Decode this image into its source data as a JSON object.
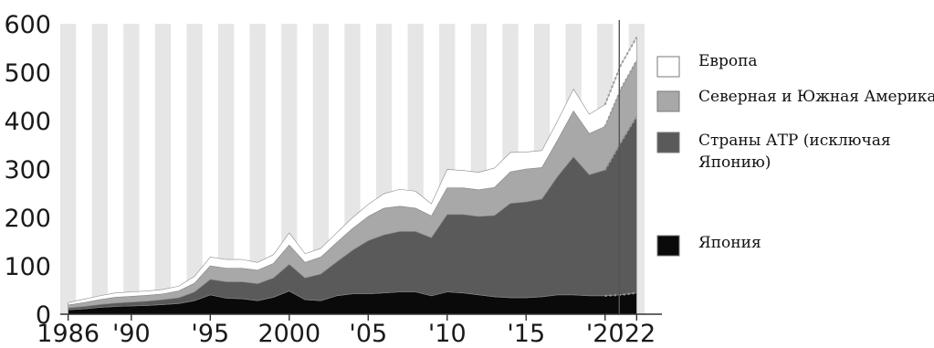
{
  "chart_data": {
    "type": "area",
    "stacked": true,
    "title": "",
    "xlabel": "",
    "ylabel": "",
    "x": [
      1986,
      1987,
      1988,
      1989,
      1990,
      1991,
      1992,
      1993,
      1994,
      1995,
      1996,
      1997,
      1998,
      1999,
      2000,
      2001,
      2002,
      2003,
      2004,
      2005,
      2006,
      2007,
      2008,
      2009,
      2010,
      2011,
      2012,
      2013,
      2014,
      2015,
      2016,
      2017,
      2018,
      2019,
      2020,
      2021,
      2022
    ],
    "xlim": [
      1985.5,
      2023.6
    ],
    "ylim": [
      0,
      600
    ],
    "y_ticks": [
      0,
      100,
      200,
      300,
      400,
      500,
      600
    ],
    "x_ticks": [
      {
        "value": 1986,
        "label": "1986"
      },
      {
        "value": 1990,
        "label": "'90"
      },
      {
        "value": 1995,
        "label": "'95"
      },
      {
        "value": 2000,
        "label": "2000"
      },
      {
        "value": 2005,
        "label": "'05"
      },
      {
        "value": 2010,
        "label": "'10"
      },
      {
        "value": 2015,
        "label": "'15"
      },
      {
        "value": 2020,
        "label": "'20"
      },
      {
        "value": 2022,
        "label": "'22"
      }
    ],
    "forecast_start": 2021,
    "forecast_divider_x": 2020.9,
    "series": [
      {
        "name": "Япония",
        "color": "#0a0a0a",
        "values": [
          9,
          11,
          14,
          16,
          17,
          18,
          20,
          22,
          28,
          40,
          33,
          32,
          28,
          35,
          48,
          30,
          28,
          38,
          42,
          42,
          44,
          46,
          46,
          38,
          46,
          44,
          40,
          36,
          34,
          34,
          36,
          40,
          40,
          38,
          38,
          40,
          44
        ]
      },
      {
        "name": "Страны АТР (исключая Японию)",
        "color": "#5a5a5a",
        "values": [
          4,
          5,
          6,
          7,
          8,
          9,
          10,
          12,
          18,
          32,
          34,
          35,
          35,
          40,
          55,
          45,
          55,
          70,
          90,
          110,
          120,
          125,
          125,
          120,
          160,
          162,
          162,
          168,
          195,
          198,
          202,
          245,
          285,
          250,
          260,
          315,
          365
        ]
      },
      {
        "name": "Северная и Южная Америка",
        "color": "#a8a8a8",
        "values": [
          6,
          8,
          10,
          12,
          12,
          12,
          12,
          14,
          18,
          28,
          28,
          28,
          28,
          30,
          40,
          32,
          35,
          40,
          45,
          50,
          55,
          52,
          48,
          45,
          55,
          55,
          55,
          58,
          65,
          68,
          65,
          75,
          95,
          85,
          90,
          110,
          115
        ]
      },
      {
        "name": "Европа",
        "color": "#ffffff",
        "values": [
          5,
          7,
          8,
          9,
          9,
          9,
          9,
          10,
          14,
          18,
          18,
          18,
          16,
          18,
          25,
          18,
          18,
          20,
          22,
          25,
          30,
          35,
          35,
          25,
          38,
          36,
          36,
          40,
          40,
          35,
          35,
          40,
          45,
          40,
          45,
          50,
          48
        ]
      }
    ],
    "legend_position": "right",
    "legend": [
      {
        "label": "Европа",
        "color": "#ffffff"
      },
      {
        "label": "Северная и Южная Америка",
        "color": "#a8a8a8"
      },
      {
        "label": "Страны АТР (исключая Японию)",
        "color": "#5a5a5a"
      },
      {
        "label": "Япония",
        "color": "#0a0a0a"
      }
    ]
  }
}
